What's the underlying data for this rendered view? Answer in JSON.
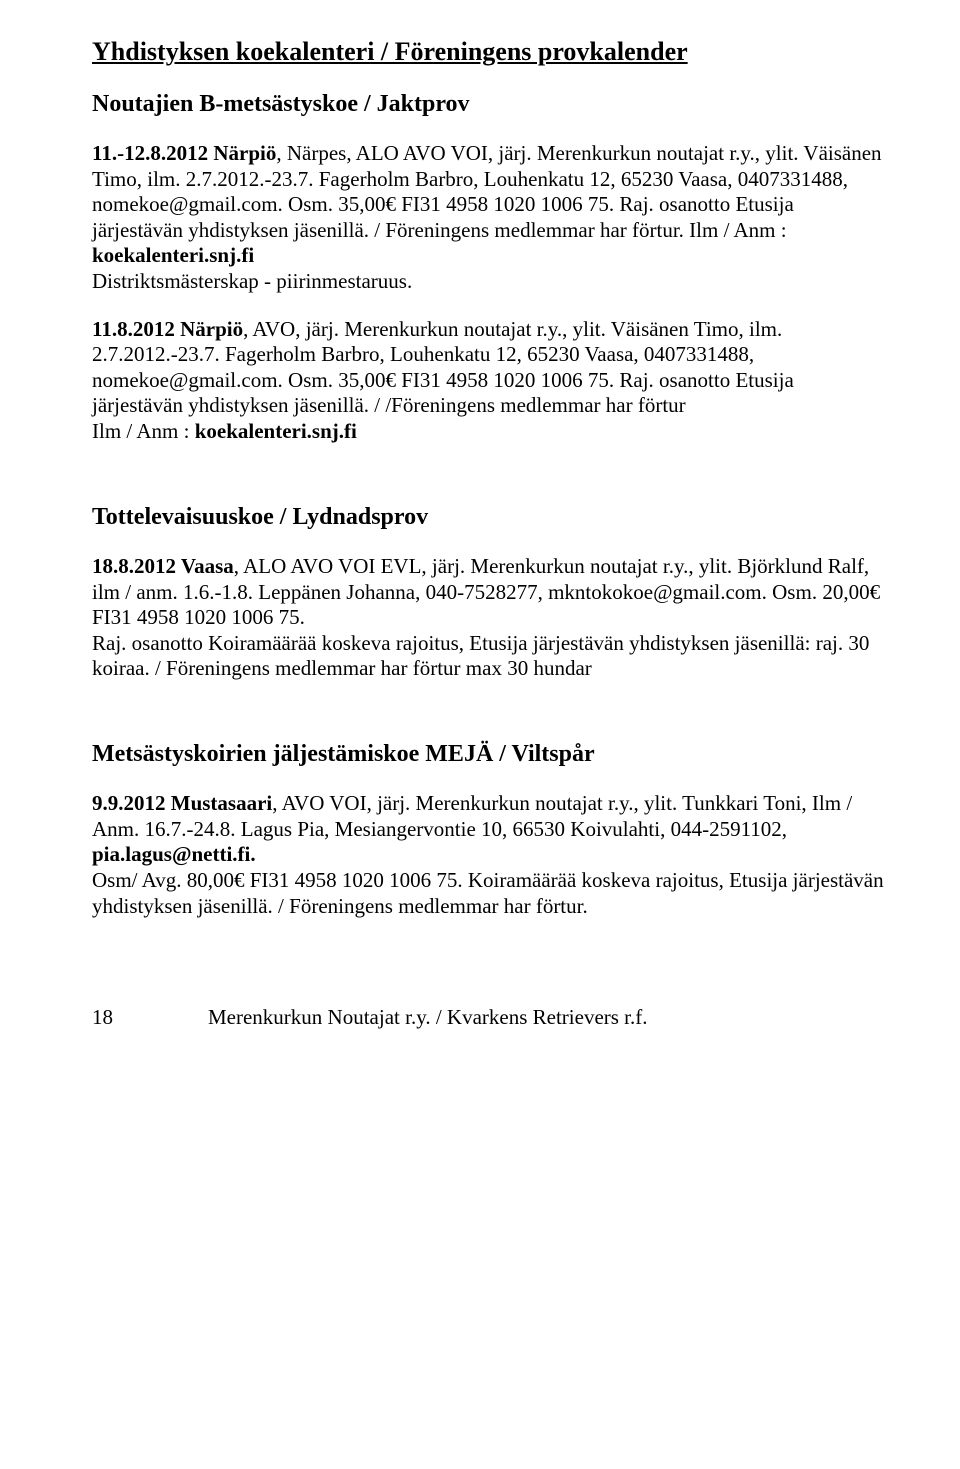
{
  "title": "Yhdistyksen koekalenteri / Föreningens provkalender",
  "section1": {
    "heading": "Noutajien B-metsästyskoe / Jaktprov",
    "p1_lead": "11.-12.8.2012 Närpiö",
    "p1_body": ", Närpes, ALO AVO VOI, järj. Merenkurkun noutajat r.y., ylit. Väisänen Timo, ilm. 2.7.2012.-23.7. Fagerholm Barbro, Louhenkatu 12, 65230 Vaasa, 0407331488, nomekoe@gmail.com. Osm. 35,00€ FI31 4958 1020 1006 75. Raj. osanotto Etusija järjestävän yhdistyksen jäsenillä. / Föreningens medlemmar har förtur. Ilm / Anm : ",
    "p1_bold": "koekalenteri.snj.fi",
    "p1_tail": "Distriktsmästerskap - piirinmestaruus.",
    "p2_lead": "11.8.2012 Närpiö",
    "p2_body": ", AVO, järj. Merenkurkun noutajat r.y., ylit. Väisänen Timo, ilm. 2.7.2012.-23.7. Fagerholm Barbro, Louhenkatu 12, 65230 Vaasa, 0407331488, nomekoe@gmail.com. Osm. 35,00€ FI31 4958 1020 1006 75. Raj. osanotto Etusija järjestävän yhdistyksen jäsenillä. / /Föreningens medlemmar har förtur",
    "p2_line": "Ilm / Anm : ",
    "p2_bold": "koekalenteri.snj.fi"
  },
  "section2": {
    "heading": "Tottelevaisuuskoe / Lydnadsprov",
    "p1_lead": "18.8.2012 Vaasa",
    "p1_body": ", ALO AVO VOI EVL, järj. Merenkurkun noutajat r.y., ylit. Björklund Ralf, ilm / anm. 1.6.-1.8. Leppänen Johanna, 040-7528277, mkntokokoe@gmail.com. Osm. 20,00€ FI31 4958 1020 1006 75.",
    "p1_body2": "Raj. osanotto Koiramäärää koskeva rajoitus, Etusija järjestävän yhdistyksen jäsenillä: raj. 30 koiraa. / Föreningens medlemmar har förtur max 30 hundar"
  },
  "section3": {
    "heading": "Metsästyskoirien jäljestämiskoe MEJÄ / Viltspår",
    "p1_lead": "9.9.2012 Mustasaari",
    "p1_body": ", AVO VOI, järj. Merenkurkun noutajat r.y., ylit. Tunkkari Toni, Ilm / Anm. 16.7.-24.8. Lagus Pia, Mesiangervontie 10, 66530 Koivulahti, 044-2591102, ",
    "p1_bold": "pia.lagus@netti.fi.",
    "p1_tail": "Osm/ Avg. 80,00€ FI31 4958 1020 1006 75. Koiramäärää koskeva rajoitus, Etusija järjestävän yhdistyksen jäsenillä. / Föreningens medlemmar har förtur."
  },
  "footer": {
    "page": "18",
    "text": "Merenkurkun Noutajat r.y. / Kvarkens Retrievers r.f."
  }
}
